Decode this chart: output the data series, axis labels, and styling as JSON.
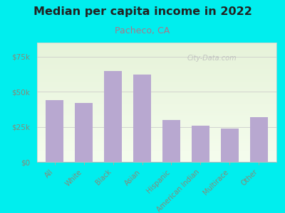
{
  "title": "Median per capita income in 2022",
  "subtitle": "Pacheco, CA",
  "categories": [
    "All",
    "White",
    "Black",
    "Asian",
    "Hispanic",
    "American Indian",
    "Multirace",
    "Other"
  ],
  "values": [
    44000,
    42000,
    65000,
    62000,
    30000,
    26000,
    24000,
    32000
  ],
  "bar_color": "#b8a8d0",
  "background_color": "#00EEEE",
  "title_color": "#222222",
  "subtitle_color": "#aa7788",
  "tick_label_color": "#888877",
  "watermark": "City-Data.com",
  "ylim": [
    0,
    85000
  ],
  "yticks": [
    0,
    25000,
    50000,
    75000
  ],
  "ytick_labels": [
    "$0",
    "$25k",
    "$50k",
    "$75k"
  ]
}
